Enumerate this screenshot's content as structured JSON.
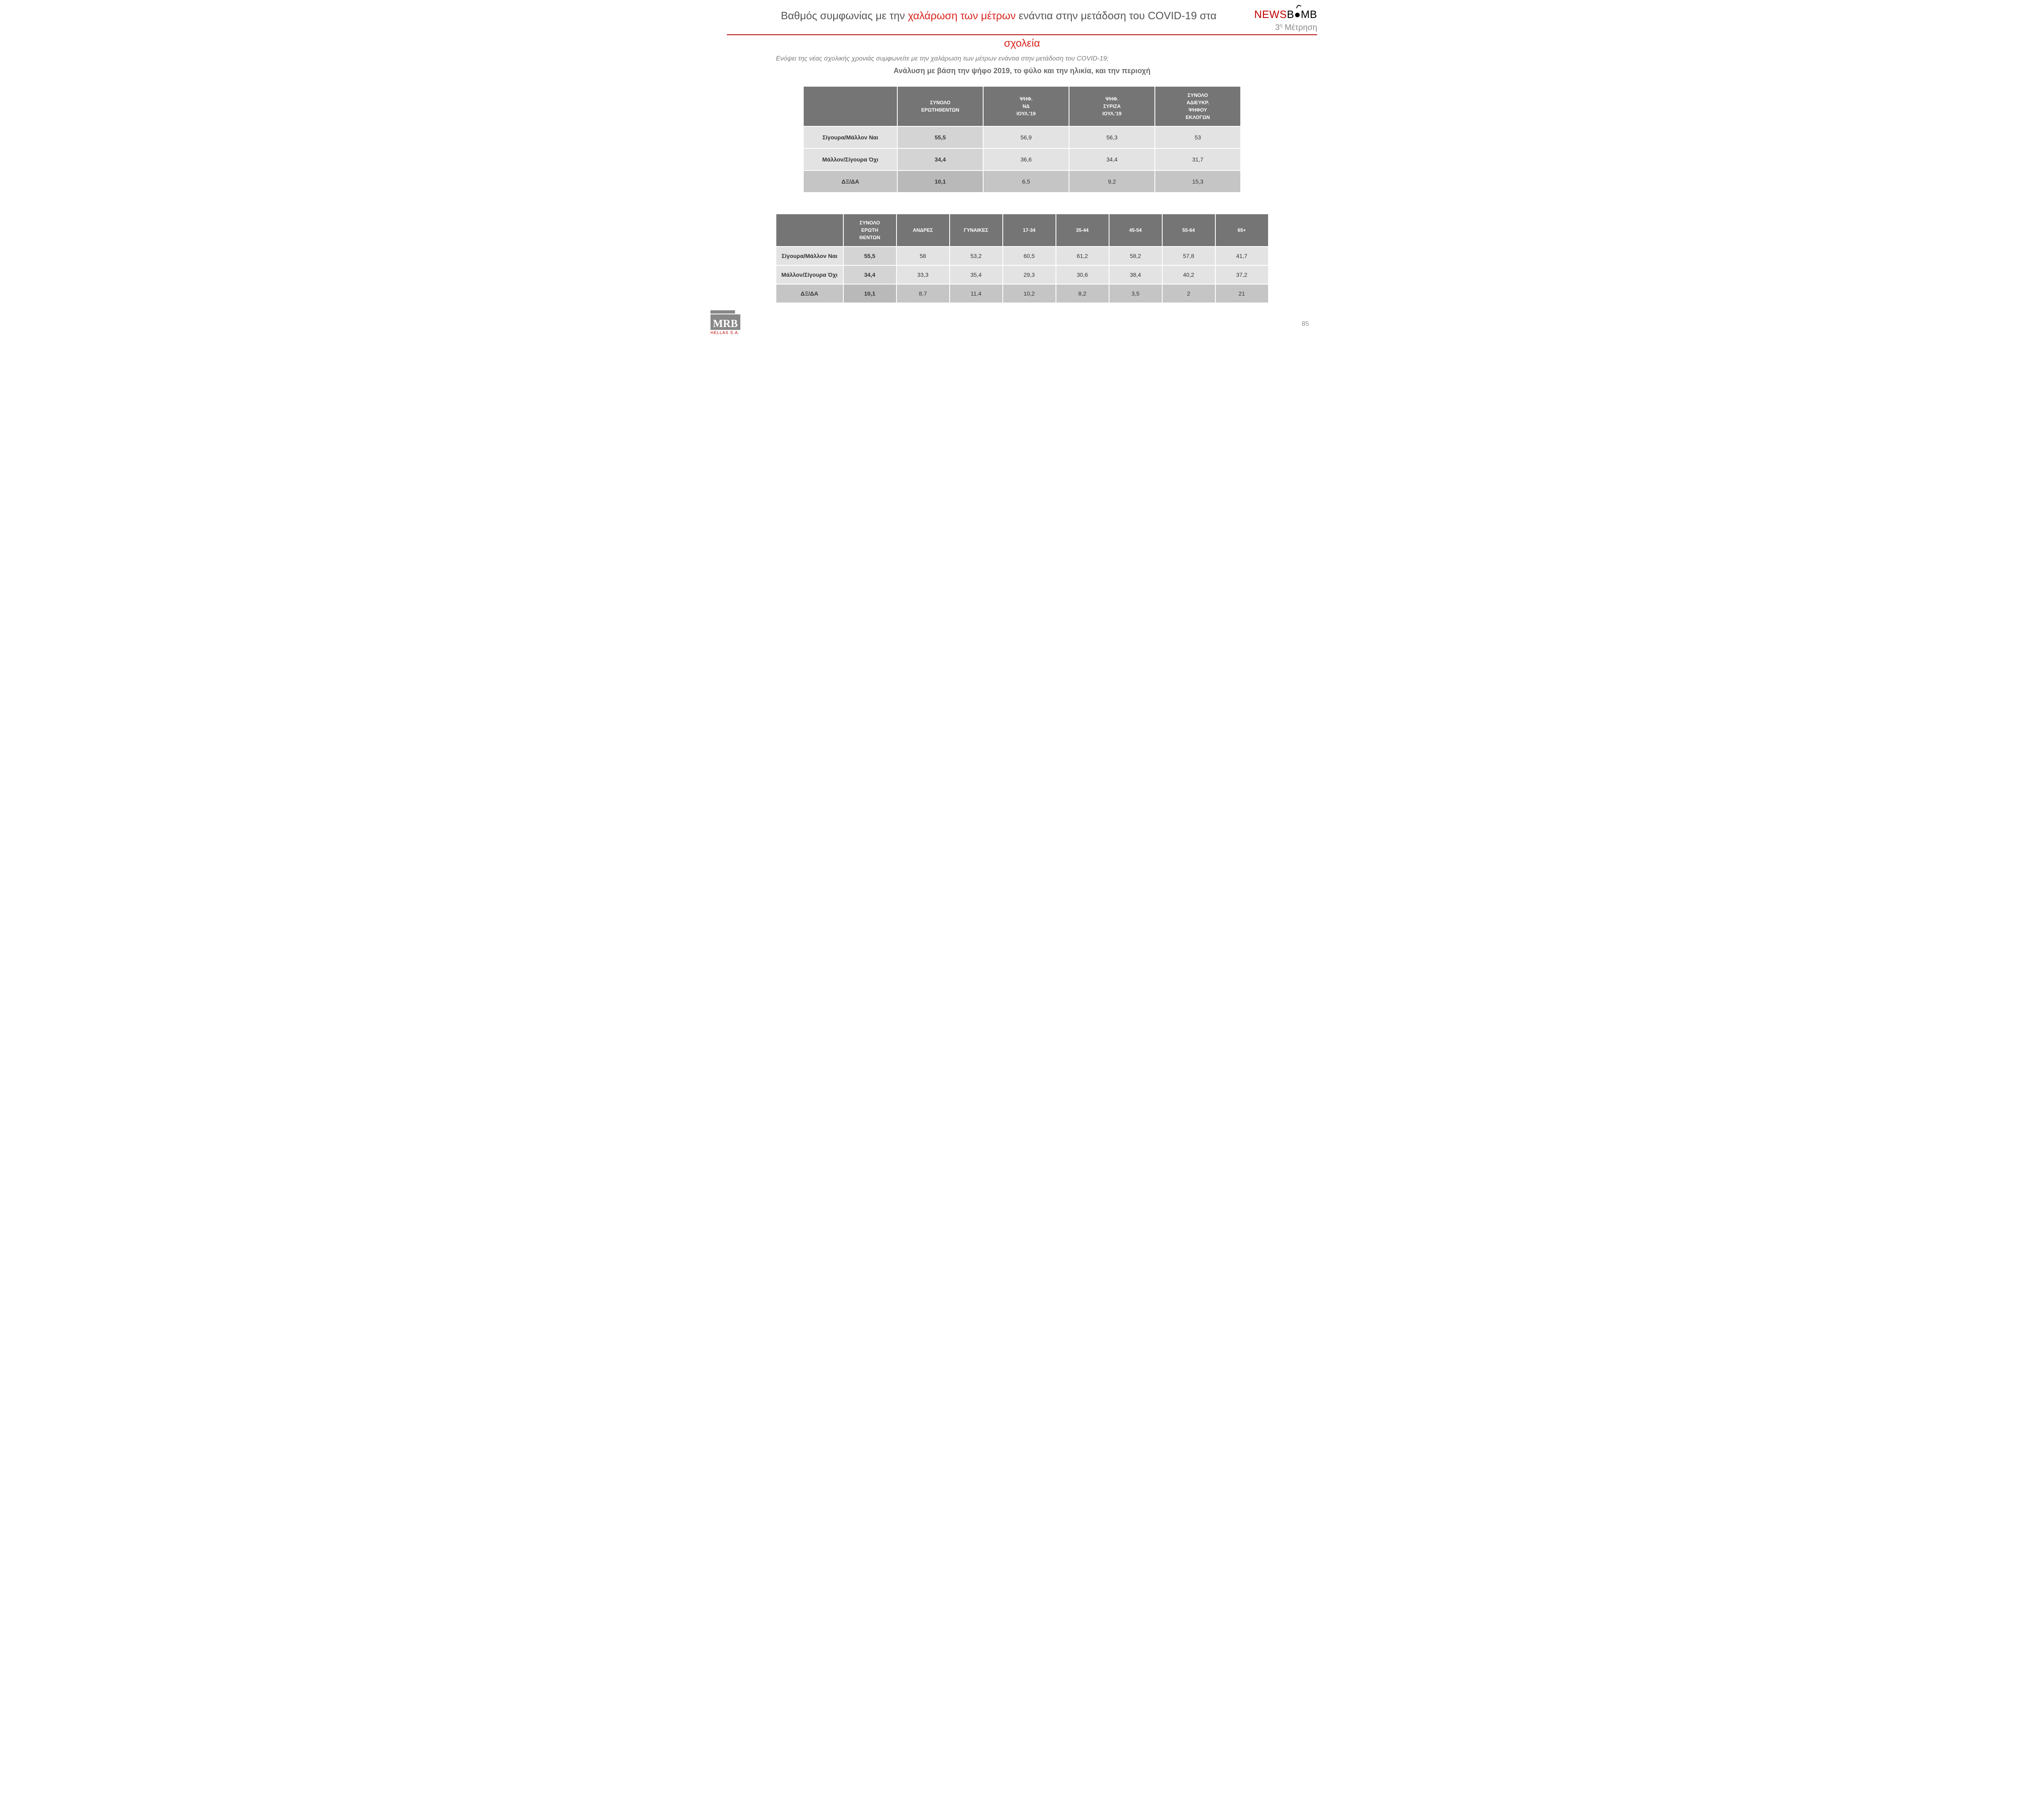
{
  "header": {
    "title_pre": "Βαθμός συμφωνίας με την ",
    "title_hl1": "χαλάρωση των μέτρων",
    "title_mid": " ενάντια στην μετάδοση του COVID-19 στα",
    "title_hl2": "σχολεία",
    "logo_part1": "NEWS",
    "logo_part2": "B",
    "logo_part3": "MB",
    "metrisi_num": "3",
    "metrisi_sup": "η",
    "metrisi_word": " Μέτρηση"
  },
  "question": "Ενόψει της νέας σχολικής χρονιάς συμφωνείτε με την χαλάρωση των μέτρων ενάντια στην μετάδοση του COVID-19;",
  "analysis": "Ανάλυση με βάση την ψήφο 2019, το φύλο και την ηλικία, και την περιοχή",
  "table1": {
    "headers": [
      "",
      "ΣΥΝΟΛΟ\nΕΡΩΤΗΘΕΝΤΩΝ",
      "ΨΗΦ.\nΝΔ\nΙΟΥΛ.'19",
      "ΨΗΦ.\nΣΥΡΙΖΑ\nΙΟΥΛ.'19",
      "ΣΥΝΟΛΟ\nΑΔΙΕΥΚΡ.\nΨΗΦΟΥ\nΕΚΛΟΓΩΝ"
    ],
    "rows": [
      {
        "label": "Σίγουρα/Μάλλον Ναι",
        "vals": [
          "55,5",
          "56,9",
          "56,3",
          "53"
        ]
      },
      {
        "label": "Μάλλον/Σίγουρα Όχι",
        "vals": [
          "34,4",
          "36,6",
          "34,4",
          "31,7"
        ]
      },
      {
        "label": "ΔΞ/ΔΑ",
        "vals": [
          "10,1",
          "6,5",
          "9,2",
          "15,3"
        ]
      }
    ]
  },
  "table2": {
    "headers": [
      "",
      "ΣΥΝΟΛΟ\nΕΡΩΤΗ\nΘΕΝΤΩΝ",
      "ΑΝΔΡΕΣ",
      "ΓΥΝΑΙΚΕΣ",
      "17-34",
      "35-44",
      "45-54",
      "55-64",
      "65+"
    ],
    "rows": [
      {
        "label": "Σίγουρα/Μάλλον Ναι",
        "vals": [
          "55,5",
          "58",
          "53,2",
          "60,5",
          "61,2",
          "58,2",
          "57,8",
          "41,7"
        ]
      },
      {
        "label": "Μάλλον/Σίγουρα Όχι",
        "vals": [
          "34,4",
          "33,3",
          "35,4",
          "29,3",
          "30,6",
          "38,4",
          "40,2",
          "37,2"
        ]
      },
      {
        "label": "ΔΞ/ΔΑ",
        "vals": [
          "10,1",
          "8,7",
          "11,4",
          "10,2",
          "8,2",
          "3,5",
          "2",
          "21"
        ]
      }
    ]
  },
  "footer": {
    "mrb": "MRB",
    "mrb_sub": "HELLAS S.A.",
    "page": "85"
  },
  "styling": {
    "header_bg": "#757575",
    "header_fg": "#ffffff",
    "row_bg_even": "#e3e3e3",
    "row_bg_odd": "#c5c5c5",
    "bold_col_bg_even": "#d4d4d4",
    "bold_col_bg_odd": "#b9b9b9",
    "accent_red": "#d9251f",
    "rule_red": "#b40000",
    "text_gray": "#555555",
    "muted_gray": "#8a8a8a",
    "border": "#ffffff",
    "title_fontsize_pt": 20,
    "header_fontsize_pt": 9,
    "cell_fontsize_pt": 11
  }
}
